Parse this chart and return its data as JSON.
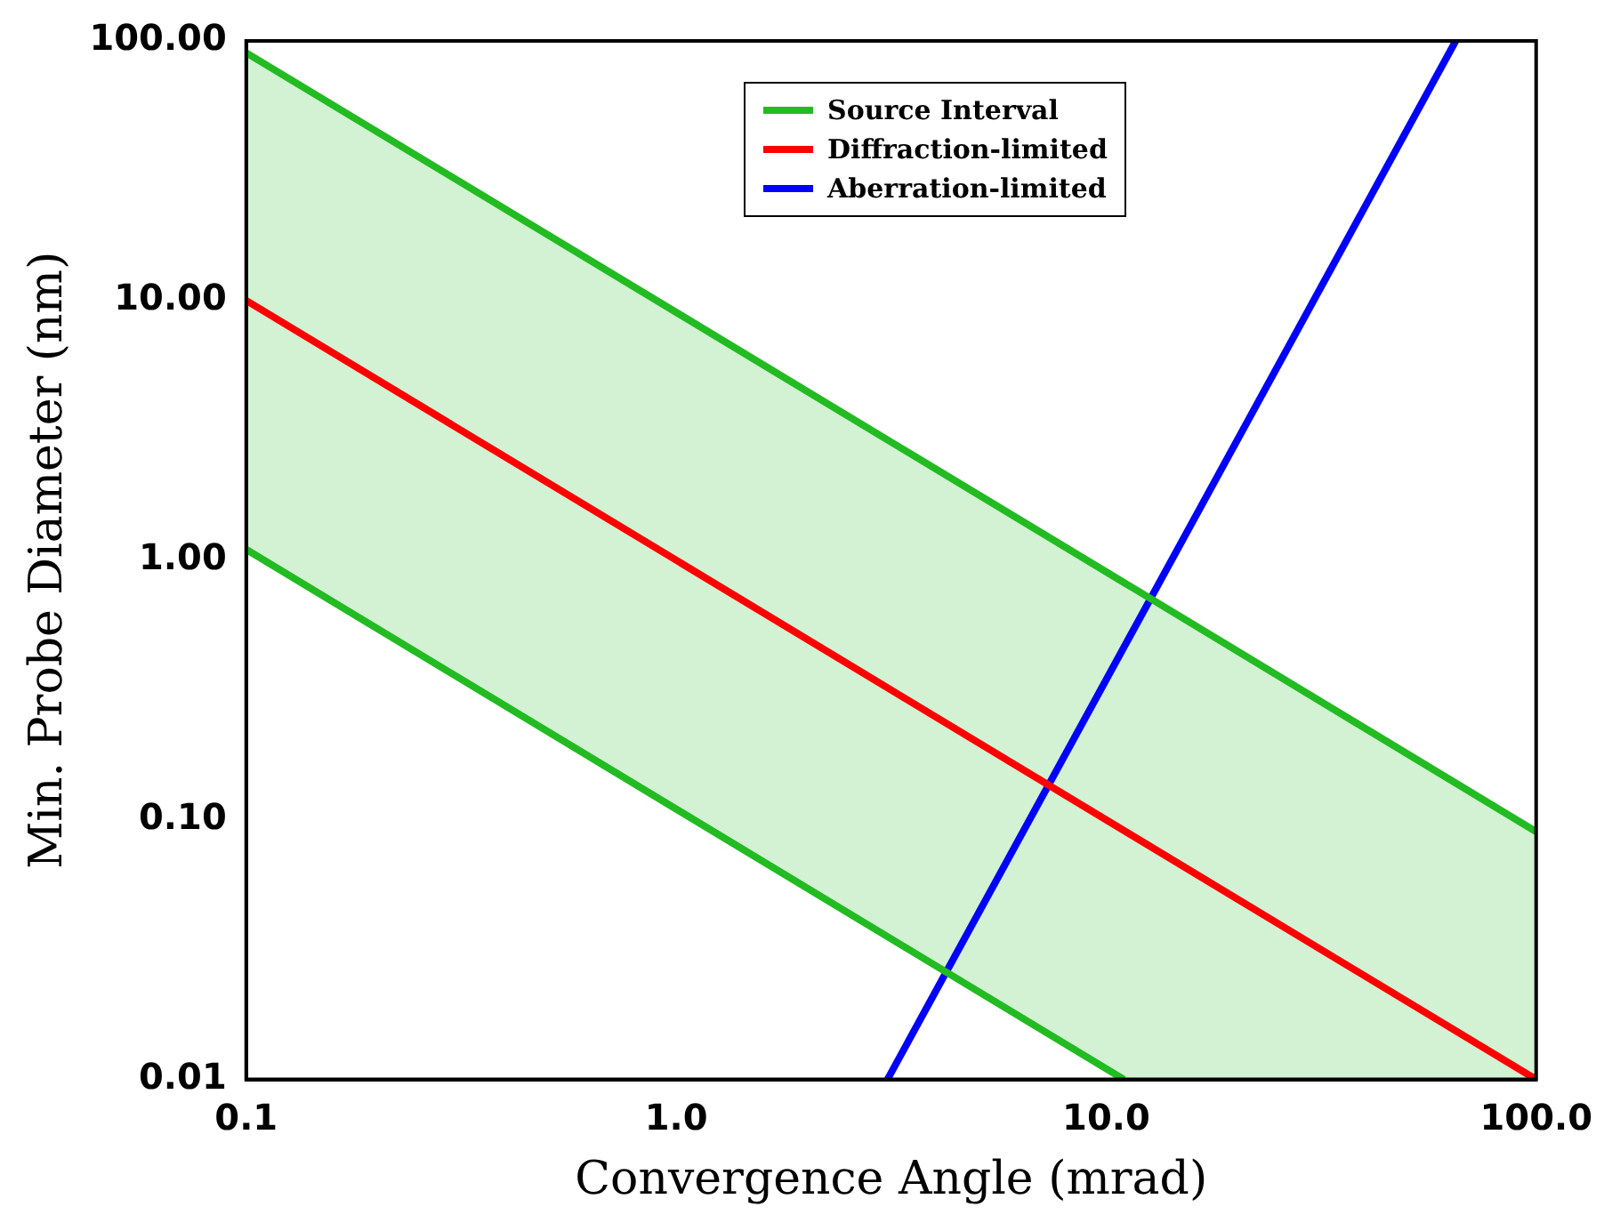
{
  "chart_data": {
    "type": "line",
    "xlabel": "Convergence Angle (mrad)",
    "ylabel": "Min. Probe Diameter (nm)",
    "log": "xy",
    "grid": false,
    "legend": "top",
    "marker": "none",
    "line_style": "solid",
    "xlim": [
      0.1,
      100
    ],
    "ylim": [
      0.01,
      100
    ],
    "xticks": [
      0.1,
      {
        "value": 1,
        "label": "1.0"
      },
      {
        "value": 10,
        "label": "10.0"
      },
      {
        "value": 100,
        "label": "100.0"
      }
    ],
    "yticks": [
      0.01,
      {
        "value": 0.1,
        "label": "0.10"
      },
      {
        "value": 1,
        "label": "1.00"
      },
      {
        "value": 10,
        "label": "10.00"
      },
      {
        "value": 100,
        "label": "100.00"
      }
    ],
    "series": [
      {
        "name": "Source Interval",
        "color": "#22bb22",
        "x": [
          0.1,
          11,
          100
        ],
        "values": [
          90,
          0.82,
          0.09
        ],
        "lower": [
          1.1,
          0.01,
          0.01
        ],
        "upper": [
          90,
          0.82,
          0.09
        ]
      },
      {
        "color": "#22bb22",
        "x": [
          0.1,
          11
        ],
        "values": [
          1.1,
          0.01
        ]
      },
      {
        "name": "Diffraction-limited",
        "color": "#ff0000",
        "x": [
          0.1,
          100
        ],
        "values": [
          10,
          0.01
        ]
      },
      {
        "name": "Aberration-limited",
        "color": "#0000ff",
        "x": [
          3.1,
          65
        ],
        "values": [
          0.01,
          100
        ]
      }
    ]
  }
}
